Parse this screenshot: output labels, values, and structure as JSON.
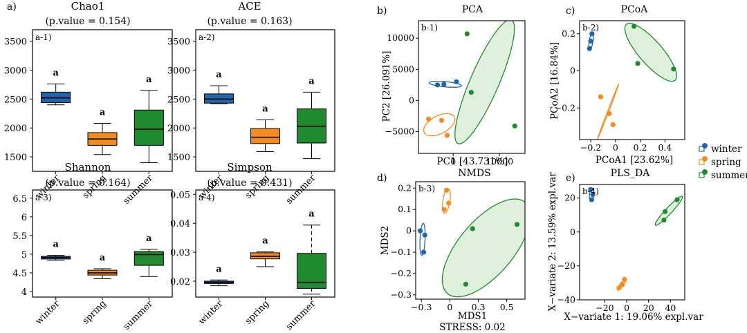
{
  "colors": {
    "winter": "#2166ac",
    "spring": "#f58b1f",
    "summer": "#1f8a2e",
    "ellipse_fill": "#dcefd9",
    "frame": "#000000"
  },
  "legend": [
    {
      "group": "winter",
      "label": "winter"
    },
    {
      "group": "spring",
      "label": "spring"
    },
    {
      "group": "summer",
      "label": "summer"
    }
  ],
  "chart_data": [
    {
      "id": "chao1",
      "panel_label": "a)",
      "tag": "a-1)",
      "type": "box",
      "title": "Chao1",
      "subtitle": "(p.value = 0.154)",
      "categories": [
        "winter",
        "spring",
        "summer"
      ],
      "yticks": [
        1500,
        2000,
        2500,
        3000,
        3500
      ],
      "ylim": [
        1250,
        3700
      ],
      "boxes": [
        {
          "group": "winter",
          "min": 2400,
          "q1": 2440,
          "median": 2520,
          "q3": 2620,
          "max": 2760
        },
        {
          "group": "spring",
          "min": 1540,
          "q1": 1700,
          "median": 1810,
          "q3": 1920,
          "max": 2080
        },
        {
          "group": "summer",
          "min": 1400,
          "q1": 1700,
          "median": 1980,
          "q3": 2310,
          "max": 2650
        }
      ],
      "letters": [
        "a",
        "a",
        "a"
      ]
    },
    {
      "id": "ace",
      "panel_label": "",
      "tag": "a-2)",
      "type": "box",
      "title": "ACE",
      "subtitle": "(p.value = 0.163)",
      "categories": [
        "winter",
        "spring",
        "summer"
      ],
      "yticks": [
        1500,
        2000,
        2500,
        3000,
        3500
      ],
      "ylim": [
        1250,
        3700
      ],
      "boxes": [
        {
          "group": "winter",
          "min": 2420,
          "q1": 2430,
          "median": 2500,
          "q3": 2590,
          "max": 2730
        },
        {
          "group": "spring",
          "min": 1590,
          "q1": 1730,
          "median": 1840,
          "q3": 1990,
          "max": 2140
        },
        {
          "group": "summer",
          "min": 1470,
          "q1": 1740,
          "median": 2030,
          "q3": 2330,
          "max": 2620
        }
      ],
      "letters": [
        "a",
        "a",
        "a"
      ]
    },
    {
      "id": "shannon",
      "panel_label": "",
      "tag": "a-3)",
      "type": "box",
      "title": "Shannon",
      "subtitle": "(p.value = 0.164)",
      "categories": [
        "winter",
        "spring",
        "summer"
      ],
      "yticks": [
        4.0,
        4.5,
        5.0,
        5.5,
        6.0,
        6.5
      ],
      "ylim": [
        3.85,
        6.72
      ],
      "boxes": [
        {
          "group": "winter",
          "min": 4.84,
          "q1": 4.87,
          "median": 4.91,
          "q3": 4.94,
          "max": 4.97
        },
        {
          "group": "spring",
          "min": 4.34,
          "q1": 4.44,
          "median": 4.5,
          "q3": 4.57,
          "max": 4.61
        },
        {
          "group": "summer",
          "min": 4.4,
          "q1": 4.7,
          "median": 4.99,
          "q3": 5.07,
          "max": 5.13
        }
      ],
      "letters": [
        "a",
        "a",
        "a"
      ]
    },
    {
      "id": "simpson",
      "panel_label": "",
      "tag": "a-4)",
      "type": "box",
      "title": "Simpson",
      "subtitle": "(p.value = 0.431)",
      "categories": [
        "winter",
        "spring",
        "summer"
      ],
      "yticks": [
        0.02,
        0.03,
        0.04,
        0.05
      ],
      "ylim": [
        0.0145,
        0.0515
      ],
      "boxes": [
        {
          "group": "winter",
          "min": 0.0184,
          "q1": 0.0192,
          "median": 0.0196,
          "q3": 0.02,
          "max": 0.0204
        },
        {
          "group": "spring",
          "min": 0.025,
          "q1": 0.0277,
          "median": 0.0286,
          "q3": 0.0298,
          "max": 0.0301
        },
        {
          "group": "summer",
          "min": 0.0155,
          "q1": 0.0175,
          "median": 0.0196,
          "q3": 0.0296,
          "max": 0.0394
        }
      ],
      "letters": [
        "a",
        "a",
        "a"
      ]
    },
    {
      "id": "pca",
      "panel_label": "b)",
      "tag": "b-1)",
      "type": "scatter",
      "title": "PCA",
      "xlabel": "PC1 [43.731%]",
      "ylabel": "PC2 [26.091%]",
      "footer": "",
      "xlim": [
        -7500,
        15500
      ],
      "ylim": [
        -8500,
        12800
      ],
      "xticks": [
        0,
        10000
      ],
      "yticks": [
        -5000,
        0,
        5000,
        10000
      ],
      "points": [
        {
          "group": "winter",
          "x": -3400,
          "y": 2500
        },
        {
          "group": "winter",
          "x": -2000,
          "y": 2600
        },
        {
          "group": "winter",
          "x": 700,
          "y": 3000
        },
        {
          "group": "spring",
          "x": -5300,
          "y": -3000
        },
        {
          "group": "spring",
          "x": -2500,
          "y": -3200
        },
        {
          "group": "spring",
          "x": -1300,
          "y": -5600
        },
        {
          "group": "summer",
          "x": 3000,
          "y": 10700
        },
        {
          "group": "summer",
          "x": 3900,
          "y": 1300
        },
        {
          "group": "summer",
          "x": 13300,
          "y": -4100
        }
      ],
      "ellipses": [
        {
          "group": "winter",
          "cx": -1700,
          "cy": 2600,
          "rx": 3500,
          "ry": 420,
          "angle": -4,
          "filled": false
        },
        {
          "group": "spring",
          "cx": -3000,
          "cy": -3900,
          "rx": 3500,
          "ry": 1500,
          "angle": 18,
          "filled": false
        },
        {
          "group": "summer",
          "cx": 6800,
          "cy": 3000,
          "rx": 11500,
          "ry": 2900,
          "angle": 59,
          "filled": true
        }
      ]
    },
    {
      "id": "pcoa",
      "panel_label": "c)",
      "tag": "b-2)",
      "type": "scatter",
      "title": "PCoA",
      "xlabel": "PCoA1  [23.62%]",
      "ylabel": "PCoA2  [16.84%]",
      "footer": "",
      "xlim": [
        -0.29,
        0.56
      ],
      "ylim": [
        -0.37,
        0.27
      ],
      "xticks": [
        -0.2,
        0.0,
        0.2,
        0.4
      ],
      "yticks": [
        -0.2,
        0.0,
        0.2
      ],
      "points": [
        {
          "group": "winter",
          "x": -0.19,
          "y": 0.2
        },
        {
          "group": "winter",
          "x": -0.2,
          "y": 0.16
        },
        {
          "group": "winter",
          "x": -0.21,
          "y": 0.12
        },
        {
          "group": "spring",
          "x": -0.12,
          "y": -0.14
        },
        {
          "group": "spring",
          "x": -0.05,
          "y": -0.23
        },
        {
          "group": "spring",
          "x": -0.02,
          "y": -0.29
        },
        {
          "group": "summer",
          "x": 0.15,
          "y": 0.24
        },
        {
          "group": "summer",
          "x": 0.18,
          "y": 0.04
        },
        {
          "group": "summer",
          "x": 0.47,
          "y": 0.01
        }
      ],
      "ellipses": [
        {
          "group": "winter",
          "cx": -0.197,
          "cy": 0.16,
          "rx": 0.05,
          "ry": 0.015,
          "angle": 75,
          "filled": false
        },
        {
          "group": "spring",
          "cx": -0.06,
          "cy": -0.22,
          "rx": 0.17,
          "ry": 0.004,
          "angle": 60,
          "filled": false
        },
        {
          "group": "summer",
          "cx": 0.285,
          "cy": 0.1,
          "rx": 0.25,
          "ry": 0.075,
          "angle": -35,
          "filled": true
        }
      ]
    },
    {
      "id": "nmds",
      "panel_label": "d)",
      "tag": "b-3)",
      "type": "scatter",
      "title": "NMDS",
      "xlabel": "MDS1",
      "ylabel": "MDS2",
      "footer": "STRESS: 0.02",
      "xlim": [
        -0.3,
        0.66
      ],
      "ylim": [
        -0.32,
        0.23
      ],
      "xticks": [
        -0.25,
        0.0,
        0.25,
        0.5
      ],
      "yticks": [
        -0.3,
        -0.2,
        -0.1,
        0.0,
        0.1,
        0.2
      ],
      "points": [
        {
          "group": "winter",
          "x": -0.26,
          "y": 0.0
        },
        {
          "group": "winter",
          "x": -0.22,
          "y": -0.02
        },
        {
          "group": "winter",
          "x": -0.23,
          "y": -0.1
        },
        {
          "group": "spring",
          "x": -0.03,
          "y": 0.19
        },
        {
          "group": "spring",
          "x": -0.01,
          "y": 0.13
        },
        {
          "group": "spring",
          "x": -0.05,
          "y": 0.1
        },
        {
          "group": "summer",
          "x": 0.2,
          "y": 0.01
        },
        {
          "group": "summer",
          "x": 0.59,
          "y": 0.03
        },
        {
          "group": "summer",
          "x": 0.14,
          "y": -0.25
        }
      ],
      "ellipses": [
        {
          "group": "winter",
          "cx": -0.24,
          "cy": -0.04,
          "rx": 0.075,
          "ry": 0.022,
          "angle": 85,
          "filled": false
        },
        {
          "group": "spring",
          "cx": -0.03,
          "cy": 0.14,
          "rx": 0.06,
          "ry": 0.03,
          "angle": 70,
          "filled": false
        },
        {
          "group": "summer",
          "cx": 0.32,
          "cy": -0.08,
          "rx": 0.42,
          "ry": 0.16,
          "angle": 25,
          "filled": true
        }
      ]
    },
    {
      "id": "plsda",
      "panel_label": "e)",
      "tag": "b-4)",
      "type": "scatter",
      "title": "PLS_DA",
      "xlabel": "X−variate 1: 19.06% expl.var",
      "ylabel": "X−variate 2: 13.59% expl.var",
      "footer": "",
      "xlim": [
        -43,
        53
      ],
      "ylim": [
        -40,
        28
      ],
      "xticks": [
        -20,
        0,
        20,
        40
      ],
      "yticks": [
        -40,
        -20,
        0,
        20
      ],
      "points": [
        {
          "group": "winter",
          "x": -33,
          "y": 25
        },
        {
          "group": "winter",
          "x": -31,
          "y": 22
        },
        {
          "group": "winter",
          "x": -32,
          "y": 19
        },
        {
          "group": "spring",
          "x": -7,
          "y": -33
        },
        {
          "group": "spring",
          "x": -4,
          "y": -31
        },
        {
          "group": "spring",
          "x": -2,
          "y": -28
        },
        {
          "group": "summer",
          "x": 35,
          "y": 12
        },
        {
          "group": "summer",
          "x": 46,
          "y": 19
        },
        {
          "group": "summer",
          "x": 34,
          "y": 7
        }
      ],
      "ellipses": [
        {
          "group": "winter",
          "cx": -32,
          "cy": 22,
          "rx": 4,
          "ry": 2,
          "angle": 80,
          "filled": false
        },
        {
          "group": "spring",
          "cx": -4.5,
          "cy": -31,
          "rx": 5,
          "ry": 1.2,
          "angle": 40,
          "filled": false
        },
        {
          "group": "summer",
          "cx": 38.5,
          "cy": 12.5,
          "rx": 15,
          "ry": 2.2,
          "angle": 34,
          "filled": true
        }
      ]
    }
  ]
}
